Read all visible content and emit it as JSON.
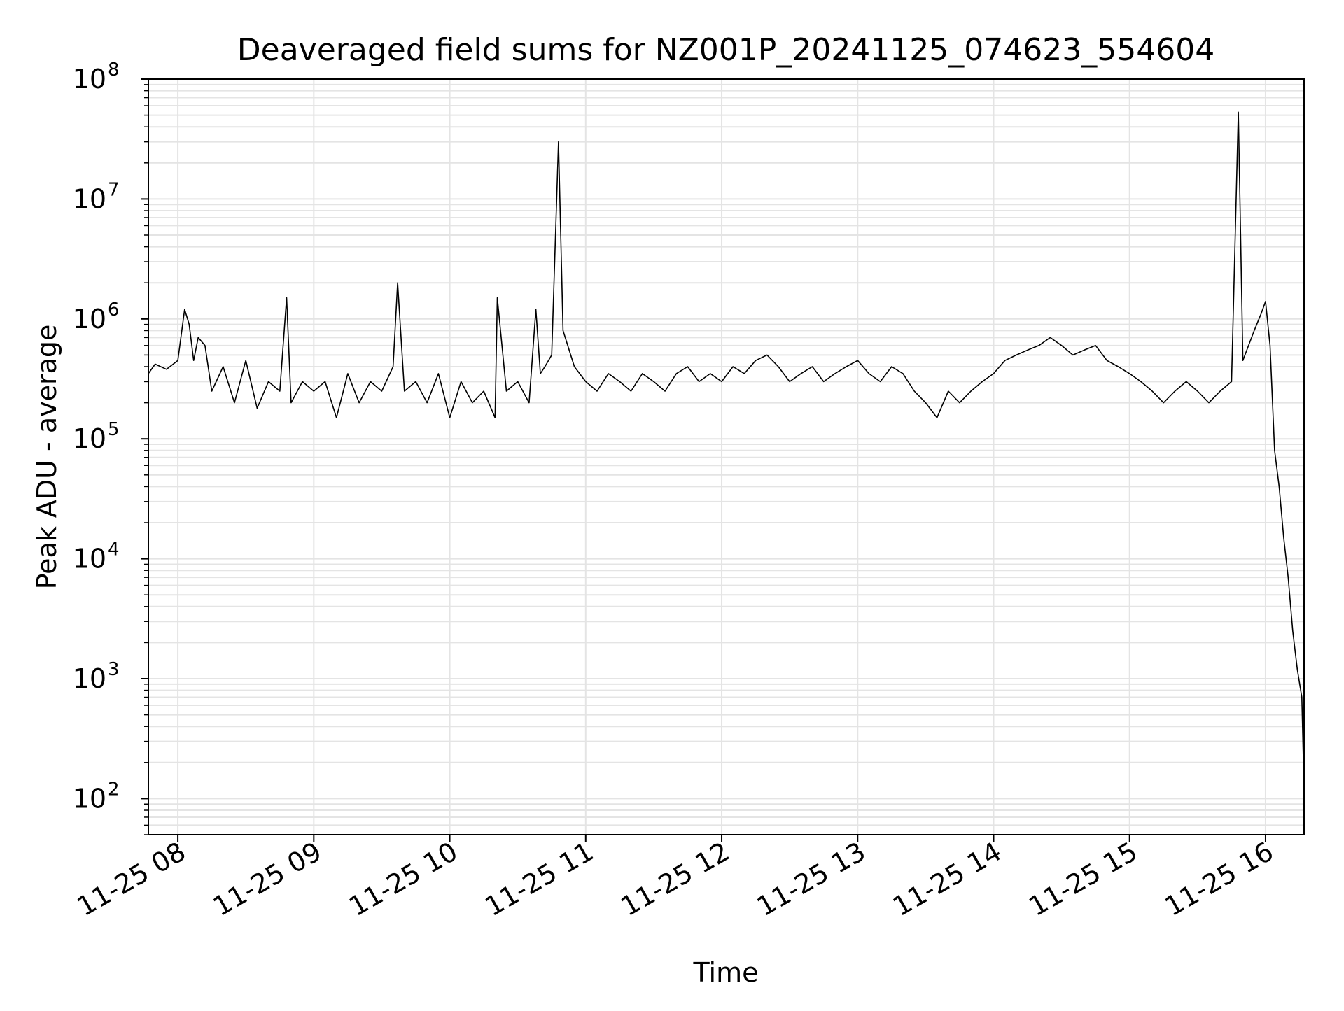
{
  "chart_data": {
    "type": "line",
    "title": "Deaveraged field sums for NZ001P_20241125_074623_554604",
    "xlabel": "Time",
    "ylabel": "Peak ADU - average",
    "yscale": "log",
    "ylim": [
      50,
      100000000
    ],
    "xlim": [
      "11-25 07:47",
      "11-25 16:17"
    ],
    "x_tick_labels": [
      "11-25 08",
      "11-25 09",
      "11-25 10",
      "11-25 11",
      "11-25 12",
      "11-25 13",
      "11-25 14",
      "11-25 15",
      "11-25 16"
    ],
    "y_tick_labels": [
      {
        "base": "10",
        "exp": "2"
      },
      {
        "base": "10",
        "exp": "3"
      },
      {
        "base": "10",
        "exp": "4"
      },
      {
        "base": "10",
        "exp": "5"
      },
      {
        "base": "10",
        "exp": "6"
      },
      {
        "base": "10",
        "exp": "7"
      },
      {
        "base": "10",
        "exp": "8"
      }
    ],
    "grid": true,
    "line_color": "#000000",
    "series": [
      {
        "x": [
          "11-25 07:47",
          "11-25 07:50",
          "11-25 07:55",
          "11-25 08:00",
          "11-25 08:03",
          "11-25 08:05",
          "11-25 08:07",
          "11-25 08:09",
          "11-25 08:12",
          "11-25 08:15",
          "11-25 08:20",
          "11-25 08:25",
          "11-25 08:30",
          "11-25 08:35",
          "11-25 08:40",
          "11-25 08:45",
          "11-25 08:48",
          "11-25 08:50",
          "11-25 08:55",
          "11-25 09:00",
          "11-25 09:05",
          "11-25 09:10",
          "11-25 09:15",
          "11-25 09:20",
          "11-25 09:25",
          "11-25 09:30",
          "11-25 09:35",
          "11-25 09:37",
          "11-25 09:40",
          "11-25 09:45",
          "11-25 09:50",
          "11-25 09:55",
          "11-25 10:00",
          "11-25 10:05",
          "11-25 10:10",
          "11-25 10:15",
          "11-25 10:20",
          "11-25 10:21",
          "11-25 10:25",
          "11-25 10:30",
          "11-25 10:35",
          "11-25 10:38",
          "11-25 10:40",
          "11-25 10:42",
          "11-25 10:45",
          "11-25 10:48",
          "11-25 10:50",
          "11-25 10:55",
          "11-25 11:00",
          "11-25 11:05",
          "11-25 11:10",
          "11-25 11:15",
          "11-25 11:20",
          "11-25 11:25",
          "11-25 11:30",
          "11-25 11:35",
          "11-25 11:40",
          "11-25 11:45",
          "11-25 11:50",
          "11-25 11:55",
          "11-25 12:00",
          "11-25 12:05",
          "11-25 12:10",
          "11-25 12:15",
          "11-25 12:20",
          "11-25 12:25",
          "11-25 12:30",
          "11-25 12:35",
          "11-25 12:40",
          "11-25 12:45",
          "11-25 12:50",
          "11-25 12:55",
          "11-25 13:00",
          "11-25 13:05",
          "11-25 13:10",
          "11-25 13:15",
          "11-25 13:20",
          "11-25 13:25",
          "11-25 13:30",
          "11-25 13:35",
          "11-25 13:40",
          "11-25 13:45",
          "11-25 13:50",
          "11-25 13:55",
          "11-25 14:00",
          "11-25 14:05",
          "11-25 14:10",
          "11-25 14:15",
          "11-25 14:20",
          "11-25 14:25",
          "11-25 14:30",
          "11-25 14:35",
          "11-25 14:40",
          "11-25 14:45",
          "11-25 14:50",
          "11-25 14:55",
          "11-25 15:00",
          "11-25 15:05",
          "11-25 15:10",
          "11-25 15:15",
          "11-25 15:20",
          "11-25 15:25",
          "11-25 15:30",
          "11-25 15:35",
          "11-25 15:40",
          "11-25 15:45",
          "11-25 15:48",
          "11-25 15:50",
          "11-25 15:55",
          "11-25 15:58",
          "11-25 16:00",
          "11-25 16:02",
          "11-25 16:04",
          "11-25 16:06",
          "11-25 16:08",
          "11-25 16:10",
          "11-25 16:12",
          "11-25 16:14",
          "11-25 16:16",
          "11-25 16:17"
        ],
        "y": [
          350000,
          420000,
          380000,
          450000,
          1200000,
          900000,
          450000,
          700000,
          600000,
          250000,
          400000,
          200000,
          450000,
          180000,
          300000,
          250000,
          1500000,
          200000,
          300000,
          250000,
          300000,
          150000,
          350000,
          200000,
          300000,
          250000,
          400000,
          2000000,
          250000,
          300000,
          200000,
          350000,
          150000,
          300000,
          200000,
          250000,
          150000,
          1500000,
          250000,
          300000,
          200000,
          1200000,
          350000,
          400000,
          500000,
          30000000,
          800000,
          400000,
          300000,
          250000,
          350000,
          300000,
          250000,
          350000,
          300000,
          250000,
          350000,
          400000,
          300000,
          350000,
          300000,
          400000,
          350000,
          450000,
          500000,
          400000,
          300000,
          350000,
          400000,
          300000,
          350000,
          400000,
          450000,
          350000,
          300000,
          400000,
          350000,
          250000,
          200000,
          150000,
          250000,
          200000,
          250000,
          300000,
          350000,
          450000,
          500000,
          550000,
          600000,
          700000,
          600000,
          500000,
          550000,
          600000,
          450000,
          400000,
          350000,
          300000,
          250000,
          200000,
          250000,
          300000,
          250000,
          200000,
          250000,
          300000,
          53000000,
          450000,
          800000,
          1100000,
          1400000,
          600000,
          80000,
          40000,
          15000,
          7000,
          2500,
          1200,
          700,
          120
        ]
      }
    ]
  }
}
